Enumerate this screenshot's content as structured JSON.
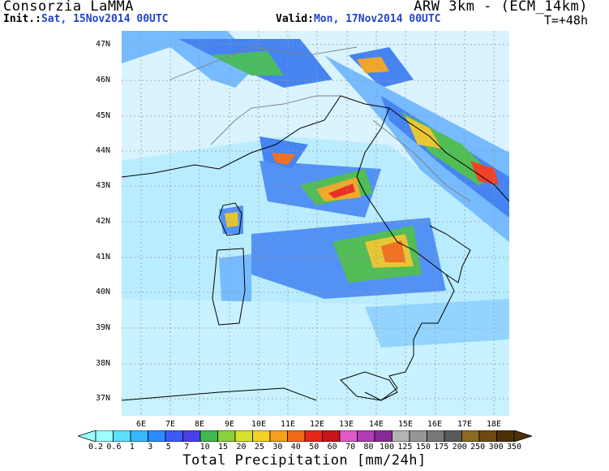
{
  "header": {
    "org": "Consorzia LaMMA",
    "model": "ARW 3km - (ECM_14km)",
    "init_label": "Init.:",
    "init_value": "Sat, 15Nov2014 00UTC",
    "valid_label": "Valid:",
    "valid_value": "Mon, 17Nov2014 00UTC",
    "forecast_step": "T=+48h"
  },
  "map": {
    "lat_labels": [
      "47N",
      "46N",
      "45N",
      "44N",
      "43N",
      "42N",
      "41N",
      "40N",
      "39N",
      "38N",
      "37N"
    ],
    "lon_labels": [
      "6E",
      "7E",
      "8E",
      "9E",
      "10E",
      "11E",
      "12E",
      "13E",
      "14E",
      "15E",
      "16E",
      "17E",
      "18E"
    ],
    "colors": {
      "land_bg": "#ffffff",
      "coast": "#000000",
      "border": "#808080",
      "grid": "#999999"
    }
  },
  "colorbar": {
    "title": "Total Precipitation [mm/24h]",
    "levels": [
      "0.2",
      "0.6",
      "1",
      "3",
      "5",
      "7",
      "10",
      "15",
      "20",
      "25",
      "30",
      "40",
      "50",
      "60",
      "70",
      "80",
      "100",
      "125",
      "150",
      "175",
      "200",
      "250",
      "300",
      "350"
    ],
    "colors": [
      "#99ffff",
      "#5ce0ff",
      "#35b8ff",
      "#2a8cff",
      "#3a5cf5",
      "#4a40e8",
      "#3fb84c",
      "#8ad23a",
      "#d8e22c",
      "#f5d223",
      "#f5a01e",
      "#ef6a18",
      "#e8261a",
      "#c8141a",
      "#e05ac8",
      "#b23cb4",
      "#8a2a96",
      "#b4b4b4",
      "#969696",
      "#787878",
      "#5a5a5a",
      "#8c6a20",
      "#6e4a12",
      "#4e3008"
    ]
  }
}
